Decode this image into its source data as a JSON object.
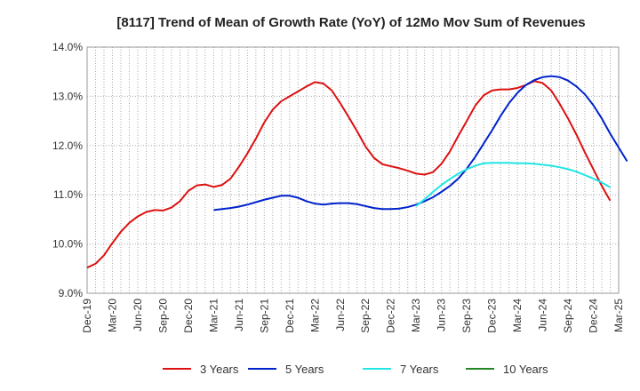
{
  "chart_data": {
    "type": "line",
    "title": "[8117]  Trend of Mean of Growth Rate (YoY) of 12Mo Mov Sum of Revenues",
    "xlabel": "",
    "ylabel": "",
    "ylim": [
      9.0,
      14.0
    ],
    "yticks": [
      "9.0%",
      "10.0%",
      "11.0%",
      "12.0%",
      "13.0%",
      "14.0%"
    ],
    "x_start": "Dec-19",
    "x_tick_labels": [
      "Dec-19",
      "Mar-20",
      "Jun-20",
      "Sep-20",
      "Dec-20",
      "Mar-21",
      "Jun-21",
      "Sep-21",
      "Dec-21",
      "Mar-22",
      "Jun-22",
      "Sep-22",
      "Dec-22",
      "Mar-23",
      "Jun-23",
      "Sep-23",
      "Dec-23",
      "Mar-24",
      "Jun-24",
      "Sep-24",
      "Dec-24",
      "Mar-25"
    ],
    "grid": true,
    "legend_position": "bottom",
    "series": [
      {
        "name": "3 Years",
        "color": "#dd1111",
        "start_index": 0,
        "values": [
          9.52,
          9.6,
          9.77,
          10.02,
          10.25,
          10.43,
          10.56,
          10.65,
          10.69,
          10.68,
          10.74,
          10.87,
          11.08,
          11.19,
          11.21,
          11.16,
          11.2,
          11.33,
          11.57,
          11.84,
          12.14,
          12.47,
          12.73,
          12.9,
          13.0,
          13.1,
          13.2,
          13.29,
          13.26,
          13.12,
          12.86,
          12.58,
          12.29,
          11.98,
          11.75,
          11.62,
          11.58,
          11.54,
          11.49,
          11.43,
          11.41,
          11.46,
          11.63,
          11.88,
          12.2,
          12.5,
          12.81,
          13.02,
          13.12,
          13.14,
          13.14,
          13.17,
          13.23,
          13.31,
          13.27,
          13.12,
          12.85,
          12.55,
          12.22,
          11.86,
          11.52,
          11.18,
          10.88
        ]
      },
      {
        "name": "5 Years",
        "color": "#0022cc",
        "start_index": 15,
        "values": [
          10.69,
          10.71,
          10.73,
          10.76,
          10.8,
          10.85,
          10.9,
          10.94,
          10.98,
          10.98,
          10.94,
          10.87,
          10.82,
          10.8,
          10.82,
          10.83,
          10.83,
          10.81,
          10.77,
          10.73,
          10.71,
          10.71,
          10.72,
          10.75,
          10.8,
          10.87,
          10.95,
          11.06,
          11.18,
          11.33,
          11.53,
          11.77,
          12.04,
          12.31,
          12.6,
          12.86,
          13.07,
          13.23,
          13.33,
          13.39,
          13.41,
          13.39,
          13.32,
          13.2,
          13.04,
          12.82,
          12.55,
          12.24,
          11.96,
          11.68
        ]
      },
      {
        "name": "7 Years",
        "color": "#22e5e5",
        "start_index": 39,
        "values": [
          10.77,
          10.91,
          11.06,
          11.2,
          11.32,
          11.43,
          11.52,
          11.59,
          11.64,
          11.65,
          11.65,
          11.65,
          11.64,
          11.64,
          11.63,
          11.61,
          11.59,
          11.56,
          11.52,
          11.47,
          11.4,
          11.33,
          11.25,
          11.15
        ]
      },
      {
        "name": "10 Years",
        "color": "#228822",
        "start_index": 0,
        "values": []
      }
    ]
  }
}
